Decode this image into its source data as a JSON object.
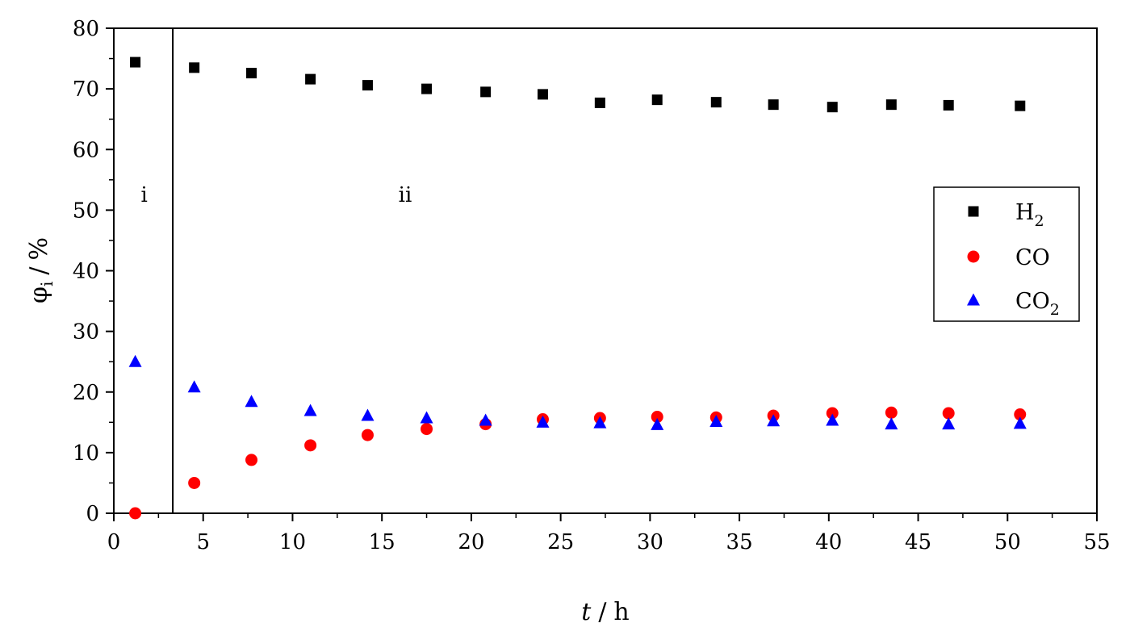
{
  "chart_data": {
    "type": "scatter",
    "title": "",
    "xlabel": {
      "main": "t",
      "unit": "h"
    },
    "ylabel": {
      "main": "φ",
      "sub": "i",
      "unit": "%"
    },
    "xlim": [
      0,
      55
    ],
    "ylim": [
      0,
      80
    ],
    "xticks": [
      0,
      5,
      10,
      15,
      20,
      25,
      30,
      35,
      40,
      45,
      50,
      55
    ],
    "yticks": [
      0,
      10,
      20,
      30,
      40,
      50,
      60,
      70,
      80
    ],
    "grid": false,
    "legend_position": "right",
    "regions": [
      {
        "label": "i"
      },
      {
        "label": "ii"
      }
    ],
    "region_boundary_x": 3.3,
    "x": [
      1.2,
      4.5,
      7.7,
      11.0,
      14.2,
      17.5,
      20.8,
      24.0,
      27.2,
      30.4,
      33.7,
      36.9,
      40.2,
      43.5,
      46.7,
      50.7
    ],
    "series": [
      {
        "name": "H",
        "sub": "2",
        "marker": "square",
        "color": "#000000",
        "values": [
          74.4,
          73.5,
          72.6,
          71.6,
          70.6,
          70.0,
          69.5,
          69.1,
          67.7,
          68.2,
          67.8,
          67.4,
          67.0,
          67.4,
          67.3,
          67.2
        ]
      },
      {
        "name": "CO",
        "sub": "",
        "marker": "circle",
        "color": "#ff0000",
        "values": [
          0.0,
          5.0,
          8.8,
          11.2,
          12.9,
          13.9,
          14.7,
          15.5,
          15.7,
          15.9,
          15.8,
          16.1,
          16.5,
          16.6,
          16.5,
          16.3
        ]
      },
      {
        "name": "CO",
        "sub": "2",
        "marker": "triangle",
        "color": "#0000ff",
        "values": [
          25.0,
          20.8,
          18.4,
          16.9,
          16.1,
          15.7,
          15.3,
          15.0,
          14.9,
          14.6,
          15.1,
          15.2,
          15.3,
          14.7,
          14.7,
          14.8
        ]
      }
    ]
  }
}
